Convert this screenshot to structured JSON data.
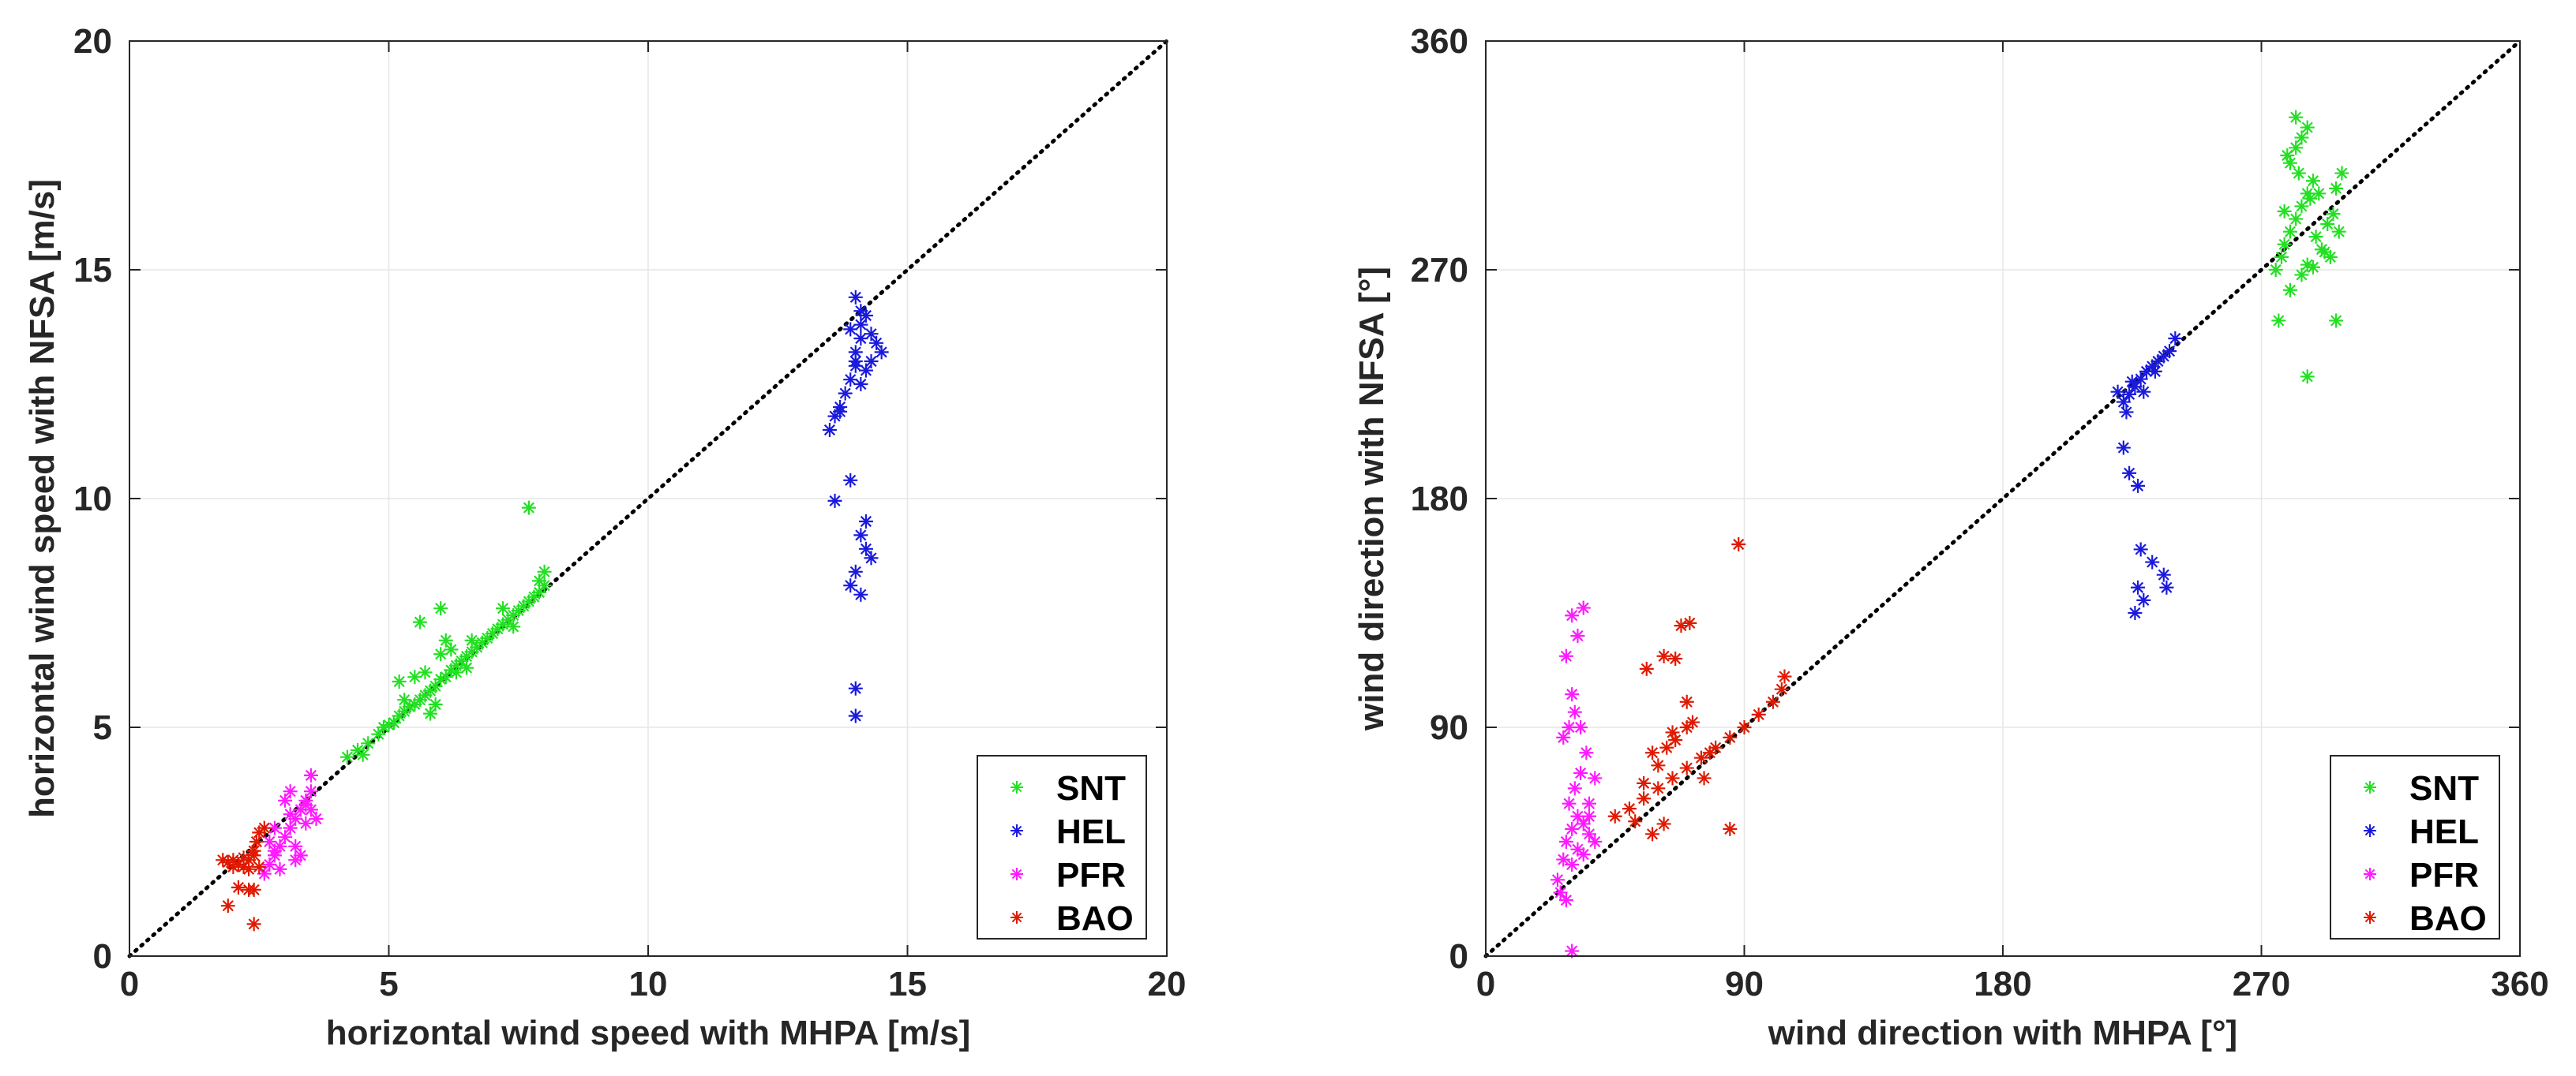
{
  "colors": {
    "SNT": "#22e022",
    "HEL": "#1a1add",
    "PFR": "#ff1aff",
    "BAO": "#e01a00"
  },
  "marker_glyph": "*",
  "chart_data": [
    {
      "id": "speed",
      "type": "scatter",
      "title": "",
      "xlabel": "horizontal wind speed with MHPA [m/s]",
      "ylabel": "horizontal wind speed with NFSA [m/s]",
      "xlim": [
        0,
        20
      ],
      "ylim": [
        0,
        20
      ],
      "xticks": [
        0,
        5,
        10,
        15,
        20
      ],
      "yticks": [
        0,
        5,
        10,
        15,
        20
      ],
      "xtick_labels": [
        "0",
        "5",
        "10",
        "15",
        "20"
      ],
      "ytick_labels": [
        "0",
        "5",
        "10",
        "15",
        "20"
      ],
      "grid": true,
      "reference_line": "y = x",
      "legend_position": "bottom-right",
      "series": [
        {
          "name": "SNT",
          "points": [
            [
              4.2,
              4.35
            ],
            [
              4.4,
              4.5
            ],
            [
              4.6,
              4.65
            ],
            [
              4.8,
              4.85
            ],
            [
              5.0,
              5.05
            ],
            [
              5.1,
              5.1
            ],
            [
              5.2,
              5.25
            ],
            [
              5.3,
              5.35
            ],
            [
              5.4,
              5.45
            ],
            [
              5.5,
              5.5
            ],
            [
              5.6,
              5.6
            ],
            [
              5.7,
              5.7
            ],
            [
              5.8,
              5.8
            ],
            [
              5.9,
              5.9
            ],
            [
              6.0,
              6.05
            ],
            [
              6.1,
              6.1
            ],
            [
              6.2,
              6.25
            ],
            [
              6.3,
              6.35
            ],
            [
              6.4,
              6.45
            ],
            [
              6.5,
              6.55
            ],
            [
              6.6,
              6.65
            ],
            [
              6.7,
              6.75
            ],
            [
              6.8,
              6.85
            ],
            [
              6.9,
              6.95
            ],
            [
              7.0,
              7.05
            ],
            [
              7.1,
              7.15
            ],
            [
              7.2,
              7.25
            ],
            [
              7.3,
              7.35
            ],
            [
              7.4,
              7.45
            ],
            [
              7.5,
              7.55
            ],
            [
              7.6,
              7.65
            ],
            [
              7.7,
              7.75
            ],
            [
              7.8,
              7.85
            ],
            [
              7.9,
              7.95
            ],
            [
              8.0,
              8.1
            ],
            [
              8.0,
              8.4
            ],
            [
              7.9,
              8.2
            ],
            [
              5.2,
              6.0
            ],
            [
              5.5,
              6.1
            ],
            [
              5.7,
              6.2
            ],
            [
              5.9,
              5.5
            ],
            [
              6.0,
              6.6
            ],
            [
              6.1,
              6.9
            ],
            [
              5.6,
              7.3
            ],
            [
              6.0,
              7.6
            ],
            [
              6.3,
              6.2
            ],
            [
              7.7,
              9.8
            ],
            [
              4.5,
              4.4
            ],
            [
              4.9,
              5.0
            ],
            [
              5.3,
              5.6
            ],
            [
              6.6,
              6.9
            ],
            [
              7.2,
              7.6
            ],
            [
              6.5,
              6.3
            ],
            [
              5.8,
              5.3
            ],
            [
              6.2,
              6.7
            ],
            [
              7.4,
              7.2
            ]
          ]
        },
        {
          "name": "HEL",
          "points": [
            [
              13.5,
              11.5
            ],
            [
              13.6,
              11.8
            ],
            [
              13.7,
              12.0
            ],
            [
              13.8,
              12.3
            ],
            [
              13.9,
              12.6
            ],
            [
              14.0,
              12.9
            ],
            [
              14.0,
              13.2
            ],
            [
              14.1,
              13.5
            ],
            [
              14.1,
              13.8
            ],
            [
              14.1,
              14.1
            ],
            [
              14.0,
              14.4
            ],
            [
              14.3,
              13.0
            ],
            [
              14.4,
              13.4
            ],
            [
              14.5,
              13.2
            ],
            [
              14.2,
              12.8
            ],
            [
              14.3,
              13.6
            ],
            [
              14.1,
              12.5
            ],
            [
              14.0,
              13.0
            ],
            [
              13.9,
              13.7
            ],
            [
              14.2,
              14.0
            ],
            [
              13.7,
              11.9
            ],
            [
              13.9,
              10.4
            ],
            [
              13.6,
              9.95
            ],
            [
              14.2,
              9.5
            ],
            [
              14.1,
              9.2
            ],
            [
              14.3,
              8.7
            ],
            [
              14.0,
              8.4
            ],
            [
              13.9,
              8.1
            ],
            [
              14.1,
              7.9
            ],
            [
              14.2,
              8.9
            ],
            [
              14.0,
              5.85
            ],
            [
              14.0,
              5.25
            ]
          ]
        },
        {
          "name": "PFR",
          "points": [
            [
              2.6,
              1.8
            ],
            [
              2.7,
              2.0
            ],
            [
              2.8,
              2.2
            ],
            [
              2.9,
              2.4
            ],
            [
              3.0,
              2.6
            ],
            [
              3.1,
              2.8
            ],
            [
              3.2,
              3.0
            ],
            [
              3.3,
              3.2
            ],
            [
              3.4,
              3.4
            ],
            [
              3.5,
              3.6
            ],
            [
              2.8,
              2.8
            ],
            [
              3.0,
              3.4
            ],
            [
              3.2,
              2.4
            ],
            [
              3.3,
              2.2
            ],
            [
              3.4,
              2.9
            ],
            [
              2.7,
              2.5
            ],
            [
              3.1,
              3.6
            ],
            [
              3.5,
              3.2
            ],
            [
              2.9,
              1.9
            ],
            [
              3.2,
              2.1
            ],
            [
              3.6,
              3.0
            ],
            [
              3.4,
              3.3
            ],
            [
              3.5,
              3.95
            ],
            [
              3.1,
              3.1
            ],
            [
              2.8,
              2.3
            ]
          ]
        },
        {
          "name": "BAO",
          "points": [
            [
              1.8,
              2.1
            ],
            [
              1.9,
              2.05
            ],
            [
              2.0,
              2.1
            ],
            [
              2.1,
              2.0
            ],
            [
              2.2,
              1.95
            ],
            [
              2.3,
              2.1
            ],
            [
              2.4,
              2.3
            ],
            [
              2.45,
              2.5
            ],
            [
              2.5,
              2.7
            ],
            [
              2.6,
              2.8
            ],
            [
              2.4,
              2.2
            ],
            [
              2.5,
              1.95
            ],
            [
              2.3,
              1.9
            ],
            [
              2.2,
              2.15
            ],
            [
              2.0,
              1.95
            ],
            [
              1.9,
              1.1
            ],
            [
              2.3,
              1.45
            ],
            [
              2.4,
              1.45
            ],
            [
              2.4,
              0.7
            ],
            [
              2.1,
              1.5
            ]
          ]
        }
      ]
    },
    {
      "id": "direction",
      "type": "scatter",
      "title": "",
      "xlabel": "wind direction with MHPA [°]",
      "ylabel": "wind direction with NFSA [°]",
      "xlim": [
        0,
        360
      ],
      "ylim": [
        0,
        360
      ],
      "xticks": [
        0,
        90,
        180,
        270,
        360
      ],
      "yticks": [
        0,
        90,
        180,
        270,
        360
      ],
      "xtick_labels": [
        "0",
        "90",
        "180",
        "270",
        "360"
      ],
      "ytick_labels": [
        "0",
        "90",
        "180",
        "270",
        "360"
      ],
      "grid": true,
      "reference_line": "y = x",
      "legend_position": "bottom-right",
      "series": [
        {
          "name": "SNT",
          "points": [
            [
              275,
              270
            ],
            [
              277,
              275
            ],
            [
              278,
              280
            ],
            [
              280,
              285
            ],
            [
              282,
              290
            ],
            [
              284,
              295
            ],
            [
              286,
              300
            ],
            [
              288,
              305
            ],
            [
              280,
              312
            ],
            [
              282,
              318
            ],
            [
              284,
              322
            ],
            [
              286,
              326
            ],
            [
              279,
              315
            ],
            [
              283,
              308
            ],
            [
              287,
              298
            ],
            [
              289,
              283
            ],
            [
              291,
              278
            ],
            [
              293,
              288
            ],
            [
              295,
              292
            ],
            [
              297,
              285
            ],
            [
              290,
              300
            ],
            [
              294,
              275
            ],
            [
              296,
              302
            ],
            [
              298,
              308
            ],
            [
              280,
              262
            ],
            [
              284,
              268
            ],
            [
              286,
              272
            ],
            [
              278,
              293
            ],
            [
              276,
              250
            ],
            [
              286,
              228
            ],
            [
              296,
              250
            ],
            [
              282,
              330
            ],
            [
              292,
              277
            ],
            [
              288,
              271
            ]
          ]
        },
        {
          "name": "HEL",
          "points": [
            [
              222,
              218
            ],
            [
              224,
              221
            ],
            [
              226,
              224
            ],
            [
              228,
              227
            ],
            [
              230,
              230
            ],
            [
              232,
              232
            ],
            [
              234,
              234
            ],
            [
              236,
              236
            ],
            [
              238,
              238
            ],
            [
              240,
              243
            ],
            [
              225,
              226
            ],
            [
              229,
              222
            ],
            [
              233,
              230
            ],
            [
              220,
              222
            ],
            [
              223,
              214
            ],
            [
              222,
              200
            ],
            [
              224,
              190
            ],
            [
              227,
              185
            ],
            [
              228,
              160
            ],
            [
              232,
              155
            ],
            [
              236,
              150
            ],
            [
              227,
              145
            ],
            [
              229,
              140
            ],
            [
              226,
              135
            ],
            [
              237,
              145
            ]
          ]
        },
        {
          "name": "PFR",
          "points": [
            [
              25,
              30
            ],
            [
              27,
              38
            ],
            [
              28,
              45
            ],
            [
              30,
              50
            ],
            [
              32,
              55
            ],
            [
              34,
              52
            ],
            [
              36,
              48
            ],
            [
              38,
              45
            ],
            [
              29,
              60
            ],
            [
              31,
              66
            ],
            [
              33,
              72
            ],
            [
              35,
              80
            ],
            [
              27,
              86
            ],
            [
              29,
              90
            ],
            [
              31,
              96
            ],
            [
              33,
              90
            ],
            [
              30,
              103
            ],
            [
              28,
              118
            ],
            [
              32,
              126
            ],
            [
              30,
              134
            ],
            [
              34,
              137
            ],
            [
              36,
              60
            ],
            [
              38,
              70
            ],
            [
              26,
              25
            ],
            [
              28,
              22
            ],
            [
              30,
              36
            ],
            [
              32,
              42
            ],
            [
              34,
              40
            ],
            [
              36,
              55
            ],
            [
              30,
              2
            ]
          ]
        },
        {
          "name": "BAO",
          "points": [
            [
              45,
              55
            ],
            [
              50,
              58
            ],
            [
              55,
              62
            ],
            [
              60,
              66
            ],
            [
              65,
              70
            ],
            [
              70,
              74
            ],
            [
              75,
              78
            ],
            [
              80,
              82
            ],
            [
              85,
              86
            ],
            [
              90,
              90
            ],
            [
              95,
              95
            ],
            [
              100,
              100
            ],
            [
              103,
              105
            ],
            [
              104,
              110
            ],
            [
              60,
              75
            ],
            [
              63,
              82
            ],
            [
              65,
              88
            ],
            [
              70,
              90
            ],
            [
              58,
              80
            ],
            [
              55,
              68
            ],
            [
              52,
              53
            ],
            [
              58,
              48
            ],
            [
              62,
              52
            ],
            [
              66,
              85
            ],
            [
              72,
              92
            ],
            [
              78,
              80
            ],
            [
              85,
              50
            ],
            [
              62,
              118
            ],
            [
              66,
              117
            ],
            [
              56,
              113
            ],
            [
              68,
              130
            ],
            [
              71,
              131
            ],
            [
              70,
              100
            ],
            [
              88,
              162
            ],
            [
              76,
              70
            ]
          ]
        }
      ]
    }
  ],
  "legend": {
    "entries": [
      "SNT",
      "HEL",
      "PFR",
      "BAO"
    ]
  }
}
